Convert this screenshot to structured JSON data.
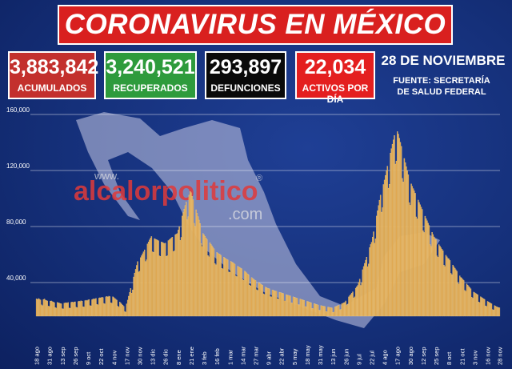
{
  "chart_data": {
    "type": "bar",
    "title": "CORONAVIRUS EN MÉXICO",
    "stats": [
      {
        "value": "3,883,842",
        "label": "ACUMULADOS",
        "color": "#c3302d"
      },
      {
        "value": "3,240,521",
        "label": "RECUPERADOS",
        "color": "#2e9b3c"
      },
      {
        "value": "293,897",
        "label": "DEFUNCIONES",
        "color": "#0a0a0a"
      },
      {
        "value": "22,034",
        "label": "ACTIVOS POR DÍA",
        "color": "#e41f1f"
      }
    ],
    "date": "28 DE NOVIEMBRE",
    "source": "FUENTE: SECRETARÍA DE SALUD FEDERAL",
    "watermark": {
      "prefix": "www.",
      "name": "alcalorpolitico",
      "mark": "®",
      "suffix": ".com"
    },
    "color": "#dca044",
    "grid": true,
    "ylim": [
      16000,
      160000
    ],
    "yticks": [
      {
        "value": 40000,
        "label": "40,000"
      },
      {
        "value": 80000,
        "label": "80,000"
      },
      {
        "value": 120000,
        "label": "120,000"
      },
      {
        "value": 160000,
        "label": "160,000"
      }
    ],
    "categories": [
      "18 ago",
      null,
      null,
      null,
      null,
      null,
      null,
      null,
      null,
      null,
      null,
      null,
      null,
      "31 ago",
      null,
      null,
      null,
      null,
      null,
      null,
      null,
      null,
      null,
      null,
      null,
      null,
      "13 sep",
      null,
      null,
      null,
      null,
      null,
      null,
      null,
      null,
      null,
      null,
      null,
      null,
      "26 sep",
      null,
      null,
      null,
      null,
      null,
      null,
      null,
      null,
      null,
      null,
      null,
      null,
      "9 oct",
      null,
      null,
      null,
      null,
      null,
      null,
      null,
      null,
      null,
      null,
      null,
      null,
      "22 oct",
      null,
      null,
      null,
      null,
      null,
      null,
      null,
      null,
      null,
      null,
      null,
      null,
      "4 nov",
      null,
      null,
      null,
      null,
      null,
      null,
      null,
      null,
      null,
      null,
      null,
      null,
      "17 nov",
      null,
      null,
      null,
      null,
      null,
      null,
      null,
      null,
      null,
      null,
      null,
      null,
      "30 nov",
      null,
      null,
      null,
      null,
      null,
      null,
      null,
      null,
      null,
      null,
      null,
      null,
      "13 dic",
      null,
      null,
      null,
      null,
      null,
      null,
      null,
      null,
      null,
      null,
      null,
      null,
      "26 dic",
      null,
      null,
      null,
      null,
      null,
      null,
      null,
      null,
      null,
      null,
      null,
      null,
      "8 ene",
      null,
      null,
      null,
      null,
      null,
      null,
      null,
      null,
      null,
      null,
      null,
      null,
      "21 ene",
      null,
      null,
      null,
      null,
      null,
      null,
      null,
      null,
      null,
      null,
      null,
      null,
      "3 feb",
      null,
      null,
      null,
      null,
      null,
      null,
      null,
      null,
      null,
      null,
      null,
      null,
      "16 feb",
      null,
      null,
      null,
      null,
      null,
      null,
      null,
      null,
      null,
      null,
      null,
      null,
      "1 mar",
      null,
      null,
      null,
      null,
      null,
      null,
      null,
      null,
      null,
      null,
      null,
      null,
      "14 mar",
      null,
      null,
      null,
      null,
      null,
      null,
      null,
      null,
      null,
      null,
      null,
      null,
      "27 mar",
      null,
      null,
      null,
      null,
      null,
      null,
      null,
      null,
      null,
      null,
      null,
      null,
      "9 abr",
      null,
      null,
      null,
      null,
      null,
      null,
      null,
      null,
      null,
      null,
      null,
      null,
      "22 abr",
      null,
      null,
      null,
      null,
      null,
      null,
      null,
      null,
      null,
      null,
      null,
      null,
      "5 may",
      null,
      null,
      null,
      null,
      null,
      null,
      null,
      null,
      null,
      null,
      null,
      null,
      "18 may",
      null,
      null,
      null,
      null,
      null,
      null,
      null,
      null,
      null,
      null,
      null,
      null,
      "31 may",
      null,
      null,
      null,
      null,
      null,
      null,
      null,
      null,
      null,
      null,
      null,
      null,
      "13 jun",
      null,
      null,
      null,
      null,
      null,
      null,
      null,
      null,
      null,
      null,
      null,
      null,
      "26 jun",
      null,
      null,
      null,
      null,
      null,
      null,
      null,
      null,
      null,
      null,
      null,
      null,
      "9 jul",
      null,
      null,
      null,
      null,
      null,
      null,
      null,
      null,
      null,
      null,
      null,
      null,
      "22 jul",
      null,
      null,
      null,
      null,
      null,
      null,
      null,
      null,
      null,
      null,
      null,
      null,
      "4 ago",
      null,
      null,
      null,
      null,
      null,
      null,
      null,
      null,
      null,
      null,
      null,
      null,
      "17 ago",
      null,
      null,
      null,
      null,
      null,
      null,
      null,
      null,
      null,
      null,
      null,
      null,
      "30 ago",
      null,
      null,
      null,
      null,
      null,
      null,
      null,
      null,
      null,
      null,
      null,
      null,
      "12 sep",
      null,
      null,
      null,
      null,
      null,
      null,
      null,
      null,
      null,
      null,
      null,
      null,
      "25 sep",
      null,
      null,
      null,
      null,
      null,
      null,
      null,
      null,
      null,
      null,
      null,
      null,
      "8 oct",
      null,
      null,
      null,
      null,
      null,
      null,
      null,
      null,
      null,
      null,
      null,
      null,
      "21 oct",
      null,
      null,
      null,
      null,
      null,
      null,
      null,
      null,
      null,
      null,
      null,
      null,
      "3 nov",
      null,
      null,
      null,
      null,
      null,
      null,
      null,
      null,
      null,
      null,
      null,
      null,
      "16 nov",
      null,
      null,
      null,
      null,
      null,
      null,
      null,
      null,
      null,
      null,
      null,
      "28 nov"
    ],
    "values": [
      28400,
      27900,
      28600,
      28100,
      27700,
      24100,
      23600,
      27900,
      28300,
      27500,
      27200,
      26900,
      23200,
      23000,
      26800,
      26900,
      26400,
      26100,
      25700,
      22100,
      21800,
      25900,
      25600,
      25400,
      25100,
      24900,
      21400,
      21200,
      25300,
      25500,
      25600,
      25400,
      25800,
      21900,
      21700,
      25900,
      26200,
      25800,
      26100,
      26300,
      22400,
      22100,
      26400,
      26800,
      26500,
      27000,
      26700,
      22800,
      22600,
      27100,
      27400,
      27000,
      27500,
      27900,
      23600,
      23400,
      27800,
      28200,
      28500,
      28100,
      28700,
      24500,
      24200,
      28900,
      29200,
      29000,
      29600,
      29300,
      25100,
      24800,
      29800,
      30100,
      29700,
      30300,
      30000,
      25600,
      25300,
      29900,
      29400,
      28700,
      28100,
      27500,
      23200,
      22600,
      26100,
      25400,
      24600,
      23900,
      23100,
      19400,
      18900,
      24800,
      27500,
      30300,
      33000,
      35800,
      32500,
      34800,
      44000,
      46800,
      49500,
      52300,
      55000,
      47600,
      48200,
      57800,
      59200,
      60600,
      62000,
      63400,
      55100,
      56300,
      67600,
      69000,
      70400,
      71800,
      72900,
      62000,
      61600,
      71400,
      71000,
      70700,
      70300,
      69900,
      59100,
      58800,
      69000,
      68700,
      68300,
      68000,
      68200,
      58800,
      59200,
      70000,
      70600,
      71200,
      71800,
      72400,
      62100,
      62600,
      74100,
      74600,
      75000,
      77500,
      80000,
      70100,
      72300,
      87500,
      90000,
      92500,
      95000,
      97500,
      84900,
      87000,
      102500,
      105000,
      104100,
      101600,
      99200,
      82300,
      80100,
      92000,
      89500,
      87100,
      84600,
      82200,
      67900,
      65800,
      75000,
      74100,
      73000,
      71900,
      70800,
      59300,
      58400,
      68500,
      67400,
      66300,
      65200,
      64100,
      53600,
      52700,
      61600,
      61100,
      60500,
      60100,
      59500,
      50200,
      49800,
      58100,
      57600,
      57000,
      56600,
      56100,
      47600,
      47300,
      55200,
      54700,
      54300,
      53800,
      53200,
      44800,
      44300,
      51700,
      51200,
      50800,
      50300,
      49900,
      42100,
      41600,
      48200,
      47600,
      46900,
      46100,
      45500,
      38100,
      37600,
      43600,
      43000,
      42400,
      41900,
      41500,
      34900,
      34500,
      40100,
      39600,
      39100,
      38600,
      38100,
      32000,
      31600,
      36800,
      36400,
      36000,
      35800,
      35500,
      30000,
      29800,
      34700,
      34500,
      34200,
      34000,
      33800,
      28500,
      28300,
      33100,
      32900,
      32700,
      32400,
      32200,
      27100,
      26900,
      31400,
      31100,
      30900,
      30600,
      30400,
      25600,
      25400,
      29800,
      29600,
      29300,
      29100,
      28800,
      24300,
      24100,
      28300,
      28000,
      27800,
      27500,
      27300,
      22900,
      22800,
      26600,
      26400,
      26100,
      25900,
      25600,
      21600,
      21400,
      25000,
      24800,
      24500,
      24300,
      24000,
      20300,
      20200,
      23600,
      23400,
      23200,
      23100,
      22900,
      19300,
      19200,
      22500,
      22400,
      22200,
      22100,
      21900,
      18700,
      18900,
      22600,
      22900,
      23200,
      23600,
      23900,
      20600,
      20900,
      24900,
      25200,
      25600,
      25900,
      26900,
      23700,
      24500,
      29800,
      30700,
      31600,
      32500,
      33400,
      29100,
      29800,
      36000,
      37000,
      38000,
      40200,
      42500,
      38000,
      39900,
      49200,
      51500,
      53700,
      56000,
      58200,
      51400,
      53300,
      65000,
      67200,
      68800,
      72500,
      76300,
      68100,
      71300,
      87500,
      91300,
      95000,
      98800,
      102500,
      90300,
      93500,
      110000,
      113200,
      116500,
      119800,
      123100,
      107400,
      110200,
      132500,
      135600,
      138800,
      141900,
      145000,
      124600,
      126800,
      147800,
      146000,
      143100,
      140200,
      137300,
      114400,
      111900,
      128600,
      125700,
      122800,
      119900,
      117000,
      97100,
      95200,
      110400,
      108800,
      107100,
      105500,
      103800,
      86900,
      85500,
      98900,
      97200,
      95600,
      93900,
      92300,
      77100,
      75700,
      87400,
      85700,
      84100,
      82400,
      80800,
      67200,
      65800,
      75900,
      74300,
      72600,
      71000,
      70700,
      59100,
      58100,
      67100,
      66000,
      64900,
      63800,
      62700,
      52400,
      51500,
      59500,
      58400,
      57300,
      56900,
      55800,
      46600,
      45700,
      52500,
      51400,
      50300,
      49200,
      48100,
      40000,
      39100,
      44800,
      43700,
      43200,
      42300,
      41500,
      34500,
      33800,
      39000,
      38200,
      37300,
      36500,
      35600,
      29600,
      28900,
      33200,
      32800,
      32300,
      31800,
      31300,
      26200,
      25800,
      29900,
      29400,
      28900,
      28500,
      28000,
      23400,
      23000,
      26600,
      26200,
      25700,
      25300,
      24900,
      20800,
      20500,
      23600,
      23200,
      22800,
      22500,
      22200,
      22034
    ]
  }
}
